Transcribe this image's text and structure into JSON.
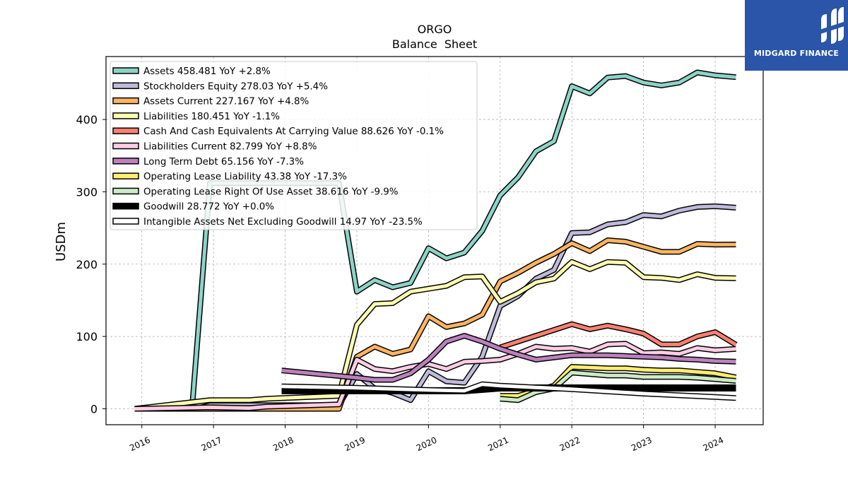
{
  "brand": {
    "name": "MIDGARD FINANCE",
    "bg_color": "#2a55a8"
  },
  "chart_data": {
    "type": "line",
    "title": "ORGO",
    "subtitle": "Balance  Sheet",
    "ylabel": "USDm",
    "xlabel": "",
    "ylim": [
      -22,
      487
    ],
    "xlim": [
      2015.5,
      2024.67
    ],
    "x_ticks": [
      2016,
      2017,
      2018,
      2019,
      2020,
      2021,
      2022,
      2023,
      2024
    ],
    "x_tick_labels": [
      "2016",
      "2017",
      "2018",
      "2019",
      "2020",
      "2021",
      "2022",
      "2023",
      "2024"
    ],
    "y_ticks": [
      0,
      100,
      200,
      300,
      400
    ],
    "y_tick_labels": [
      "0",
      "100",
      "200",
      "300",
      "400"
    ],
    "grid": true,
    "legend_position": "top-left",
    "series": [
      {
        "name": "Assets",
        "label": "Assets  458.481 YoY +2.8%",
        "color": "#8dd3c7",
        "x": [
          2016.7,
          2016.95,
          2017.75,
          2018.2,
          2018.75,
          2019.0,
          2019.25,
          2019.5,
          2019.75,
          2020.0,
          2020.25,
          2020.5,
          2020.75,
          2021.0,
          2021.25,
          2021.5,
          2021.75,
          2022.0,
          2022.25,
          2022.5,
          2022.75,
          2023.0,
          2023.25,
          2023.5,
          2023.75,
          2024.0,
          2024.29
        ],
        "y": [
          0,
          312,
          312,
          312,
          312,
          162,
          178,
          168,
          174,
          222,
          208,
          216,
          246,
          295,
          320,
          356,
          370,
          446,
          436,
          458,
          460,
          451,
          447,
          451,
          465,
          461,
          458.481
        ]
      },
      {
        "name": "Stockholders Equity",
        "label": "Stockholders Equity  278.03 YoY +5.4%",
        "color": "#bebada",
        "x": [
          2015.9,
          2016.75,
          2016.95,
          2018.75,
          2019.0,
          2019.25,
          2019.5,
          2019.75,
          2020.0,
          2020.25,
          2020.5,
          2020.75,
          2021.0,
          2021.25,
          2021.5,
          2021.75,
          2022.0,
          2022.25,
          2022.5,
          2022.75,
          2023.0,
          2023.25,
          2023.5,
          2023.75,
          2024.0,
          2024.29
        ],
        "y": [
          0,
          0,
          5,
          5,
          48,
          28,
          22,
          12,
          52,
          38,
          36,
          72,
          142,
          156,
          180,
          192,
          243,
          244,
          255,
          258,
          268,
          266,
          274,
          279,
          280,
          278.03
        ]
      },
      {
        "name": "Assets Current",
        "label": "Assets Current  227.167 YoY +4.8%",
        "color": "#fdb462",
        "x": [
          2015.9,
          2018.75,
          2019.0,
          2019.25,
          2019.5,
          2019.75,
          2020.0,
          2020.25,
          2020.5,
          2020.75,
          2021.0,
          2021.25,
          2021.5,
          2021.75,
          2022.0,
          2022.25,
          2022.5,
          2022.75,
          2023.0,
          2023.25,
          2023.5,
          2023.75,
          2024.0,
          2024.29
        ],
        "y": [
          0,
          0,
          72,
          86,
          76,
          82,
          128,
          113,
          118,
          130,
          176,
          188,
          202,
          214,
          229,
          218,
          233,
          231,
          224,
          217,
          217,
          228,
          227,
          227.167
        ]
      },
      {
        "name": "Liabilities",
        "label": "Liabilities  180.451 YoY -1.1%",
        "color": "#ffffb3",
        "x": [
          2015.9,
          2016.95,
          2017.5,
          2017.75,
          2018.25,
          2018.75,
          2019.0,
          2019.25,
          2019.5,
          2019.75,
          2020.0,
          2020.25,
          2020.5,
          2020.75,
          2021.0,
          2021.25,
          2021.5,
          2021.75,
          2022.0,
          2022.25,
          2022.5,
          2022.75,
          2023.0,
          2023.25,
          2023.5,
          2023.75,
          2024.0,
          2024.29
        ],
        "y": [
          0,
          12,
          12,
          14,
          16,
          18,
          116,
          145,
          146,
          162,
          166,
          170,
          182,
          183,
          148,
          160,
          175,
          180,
          203,
          193,
          203,
          202,
          182,
          181,
          178,
          186,
          181,
          180.451
        ]
      },
      {
        "name": "Cash And Cash Equivalents At Carrying Value",
        "label": "Cash And Cash Equivalents At Carrying Value  88.626 YoY -0.1%",
        "color": "#fb8072",
        "x": [
          2021.0,
          2021.25,
          2021.5,
          2021.75,
          2022.0,
          2022.25,
          2022.5,
          2022.75,
          2023.0,
          2023.25,
          2023.5,
          2023.75,
          2024.0,
          2024.29
        ],
        "y": [
          85,
          93,
          101,
          109,
          117,
          110,
          115,
          110,
          104,
          89,
          89,
          100,
          106,
          88.626
        ]
      },
      {
        "name": "Liabilities Current",
        "label": "Liabilities Current  82.799 YoY +8.8%",
        "color": "#fccde5",
        "x": [
          2015.9,
          2016.95,
          2017.5,
          2017.75,
          2018.75,
          2019.0,
          2019.25,
          2019.5,
          2019.75,
          2020.0,
          2020.25,
          2020.5,
          2020.75,
          2021.0,
          2021.25,
          2021.5,
          2021.75,
          2022.0,
          2022.25,
          2022.5,
          2022.75,
          2023.0,
          2023.25,
          2023.5,
          2023.75,
          2024.0,
          2024.29
        ],
        "y": [
          0,
          2,
          1,
          3,
          6,
          68,
          55,
          52,
          58,
          62,
          55,
          65,
          66,
          68,
          76,
          86,
          83,
          84,
          79,
          89,
          90,
          77,
          78,
          76,
          84,
          81,
          82.799
        ]
      },
      {
        "name": "Long Term Debt",
        "label": "Long Term Debt  65.156 YoY -7.3%",
        "color": "#bc80bd",
        "x": [
          2017.95,
          2019.0,
          2019.25,
          2019.5,
          2019.75,
          2020.0,
          2020.25,
          2020.5,
          2020.75,
          2021.0,
          2021.25,
          2021.5,
          2021.75,
          2022.0,
          2022.25,
          2022.5,
          2022.75,
          2023.0,
          2023.25,
          2023.5,
          2023.75,
          2024.0,
          2024.29
        ],
        "y": [
          53,
          43,
          40,
          40,
          49,
          68,
          93,
          101,
          93,
          83,
          75,
          68,
          71,
          74,
          74,
          74,
          73,
          72,
          71,
          69,
          68,
          66,
          65.156
        ]
      },
      {
        "name": "Operating Lease Liability",
        "label": "Operating Lease Liability  43.38 YoY -17.3%",
        "color": "#ffed6f",
        "x": [
          2021.0,
          2021.25,
          2021.5,
          2021.75,
          2022.0,
          2022.25,
          2022.5,
          2022.75,
          2023.0,
          2023.25,
          2023.5,
          2023.75,
          2024.0,
          2024.29
        ],
        "y": [
          18,
          18,
          25,
          32,
          58,
          57,
          56,
          56,
          54,
          53,
          53,
          51,
          49,
          43.38
        ]
      },
      {
        "name": "Operating Lease Right Of Use Asset",
        "label": "Operating Lease Right Of Use Asset  38.616 YoY -9.9%",
        "color": "#ccebc5",
        "x": [
          2021.0,
          2021.25,
          2021.5,
          2021.75,
          2022.0,
          2022.25,
          2022.5,
          2022.75,
          2023.0,
          2023.25,
          2023.5,
          2023.75,
          2024.0,
          2024.29
        ],
        "y": [
          14,
          12,
          23,
          28,
          50,
          48,
          46,
          46,
          44,
          44,
          44,
          43,
          41,
          38.616
        ]
      },
      {
        "name": "Goodwill",
        "label": "Goodwill  28.772 YoY +0.0%",
        "color": "#000000",
        "x": [
          2017.95,
          2020.5,
          2021.0,
          2022.0,
          2023.0,
          2024.29
        ],
        "y": [
          25,
          25,
          28.8,
          28.8,
          28.8,
          28.772
        ]
      },
      {
        "name": "Intangible Assets Net Excluding Goodwill",
        "label": "Intangible Assets Net Excluding Goodwill  14.97 YoY -23.5%",
        "color": "#ffffff",
        "x": [
          2017.95,
          2019.0,
          2020.0,
          2020.5,
          2020.75,
          2021.0,
          2022.0,
          2023.0,
          2024.29
        ],
        "y": [
          31,
          29,
          26,
          25,
          34,
          32,
          27,
          21,
          14.97
        ]
      }
    ]
  }
}
